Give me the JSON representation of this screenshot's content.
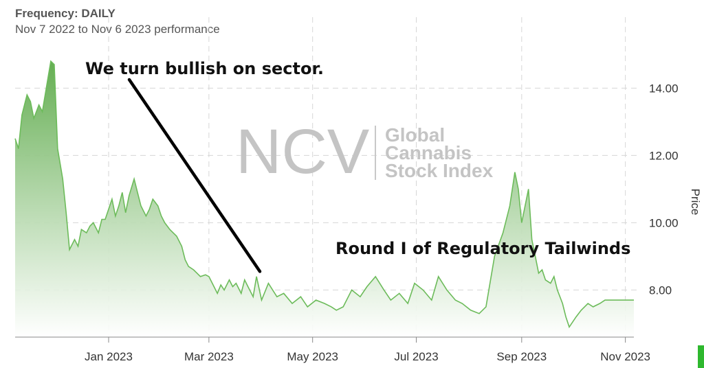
{
  "header": {
    "frequency": "Frequency: DAILY",
    "performance": "Nov 7 2022 to Nov 6 2023 performance"
  },
  "watermark": {
    "logo": "NCV",
    "lines": [
      "Global",
      "Cannabis",
      "Stock Index"
    ]
  },
  "colors": {
    "line": "#6cbb5a",
    "fill_top": "#5daa4a",
    "fill_bottom": "#ffffff",
    "grid": "#d6d6d6",
    "axis": "#888888",
    "corner_marker": "#2eb82e"
  },
  "chart_data": {
    "type": "area",
    "title": "",
    "xlabel": "",
    "ylabel": "Price",
    "y_axis_side": "right",
    "grid": true,
    "xlim": [
      "2022-11-07",
      "2023-11-06"
    ],
    "ylim": [
      6.6,
      15.7
    ],
    "y_ticks": [
      8.0,
      10.0,
      12.0,
      14.0
    ],
    "y_tick_labels": [
      "8.00",
      "10.00",
      "12.00",
      "14.00"
    ],
    "x_ticks": [
      "2023-01-01",
      "2023-03-01",
      "2023-05-01",
      "2023-07-01",
      "2023-09-01",
      "2023-11-01"
    ],
    "x_tick_labels": [
      "Jan 2023",
      "Mar 2023",
      "May 2023",
      "Jul 2023",
      "Sep 2023",
      "Nov 2023"
    ],
    "series": [
      {
        "x": [
          "2022-11-07",
          "2022-11-09",
          "2022-11-11",
          "2022-11-14",
          "2022-11-16",
          "2022-11-18",
          "2022-11-21",
          "2022-11-23",
          "2022-11-25",
          "2022-11-28",
          "2022-11-30",
          "2022-12-02",
          "2022-12-05",
          "2022-12-07",
          "2022-12-09",
          "2022-12-12",
          "2022-12-14",
          "2022-12-16",
          "2022-12-19",
          "2022-12-21",
          "2022-12-23",
          "2022-12-26",
          "2022-12-28",
          "2022-12-30",
          "2023-01-03",
          "2023-01-05",
          "2023-01-07",
          "2023-01-09",
          "2023-01-11",
          "2023-01-13",
          "2023-01-16",
          "2023-01-18",
          "2023-01-20",
          "2023-01-23",
          "2023-01-25",
          "2023-01-27",
          "2023-01-30",
          "2023-02-01",
          "2023-02-03",
          "2023-02-06",
          "2023-02-08",
          "2023-02-10",
          "2023-02-13",
          "2023-02-15",
          "2023-02-17",
          "2023-02-20",
          "2023-02-22",
          "2023-02-24",
          "2023-02-27",
          "2023-03-01",
          "2023-03-03",
          "2023-03-06",
          "2023-03-08",
          "2023-03-10",
          "2023-03-13",
          "2023-03-15",
          "2023-03-17",
          "2023-03-20",
          "2023-03-22",
          "2023-03-24",
          "2023-03-27",
          "2023-03-29",
          "2023-04-01",
          "2023-04-05",
          "2023-04-10",
          "2023-04-14",
          "2023-04-19",
          "2023-04-24",
          "2023-04-28",
          "2023-05-03",
          "2023-05-08",
          "2023-05-12",
          "2023-05-15",
          "2023-05-19",
          "2023-05-24",
          "2023-05-29",
          "2023-06-02",
          "2023-06-07",
          "2023-06-12",
          "2023-06-16",
          "2023-06-21",
          "2023-06-26",
          "2023-06-30",
          "2023-07-05",
          "2023-07-10",
          "2023-07-14",
          "2023-07-19",
          "2023-07-24",
          "2023-07-28",
          "2023-08-02",
          "2023-08-07",
          "2023-08-11",
          "2023-08-16",
          "2023-08-21",
          "2023-08-25",
          "2023-08-28",
          "2023-08-30",
          "2023-09-01",
          "2023-09-05",
          "2023-09-07",
          "2023-09-09",
          "2023-09-11",
          "2023-09-13",
          "2023-09-15",
          "2023-09-18",
          "2023-09-20",
          "2023-09-22",
          "2023-09-25",
          "2023-09-27",
          "2023-09-29",
          "2023-10-03",
          "2023-10-06",
          "2023-10-10",
          "2023-10-13",
          "2023-10-17",
          "2023-10-20",
          "2023-10-24",
          "2023-10-27",
          "2023-10-30",
          "2023-11-01",
          "2023-11-03",
          "2023-11-06"
        ],
        "values": [
          12.5,
          12.2,
          13.2,
          13.8,
          13.6,
          13.1,
          13.5,
          13.3,
          13.9,
          14.8,
          14.7,
          12.2,
          11.3,
          10.3,
          9.2,
          9.5,
          9.3,
          9.8,
          9.7,
          9.9,
          10.0,
          9.7,
          10.1,
          10.1,
          10.7,
          10.2,
          10.5,
          10.9,
          10.3,
          10.8,
          11.3,
          10.9,
          10.5,
          10.2,
          10.4,
          10.7,
          10.5,
          10.2,
          10.0,
          9.8,
          9.7,
          9.6,
          9.3,
          8.9,
          8.7,
          8.6,
          8.5,
          8.4,
          8.45,
          8.4,
          8.2,
          7.9,
          8.15,
          8.0,
          8.3,
          8.1,
          8.2,
          7.9,
          8.3,
          8.1,
          7.8,
          8.4,
          7.7,
          8.2,
          7.8,
          7.9,
          7.6,
          7.8,
          7.5,
          7.7,
          7.6,
          7.5,
          7.4,
          7.5,
          8.0,
          7.8,
          8.1,
          8.4,
          8.0,
          7.7,
          7.9,
          7.6,
          8.2,
          8.0,
          7.7,
          8.4,
          8.0,
          7.7,
          7.6,
          7.4,
          7.3,
          7.5,
          9.0,
          9.7,
          10.5,
          11.5,
          11.0,
          10.0,
          11.0,
          9.5,
          9.0,
          8.5,
          8.6,
          8.3,
          8.2,
          8.4,
          8.0,
          7.6,
          7.2,
          6.9,
          7.2,
          7.4,
          7.6,
          7.5,
          7.6,
          7.7,
          7.7,
          7.7,
          7.7,
          7.7,
          7.7,
          7.7
        ]
      }
    ],
    "annotations": [
      {
        "text": "We turn bullish on sector.",
        "arrow_to": {
          "x": "2023-03-31",
          "y": 8.55
        }
      },
      {
        "text": "Round I of Regulatory Tailwinds",
        "arrow_to": null
      }
    ]
  }
}
